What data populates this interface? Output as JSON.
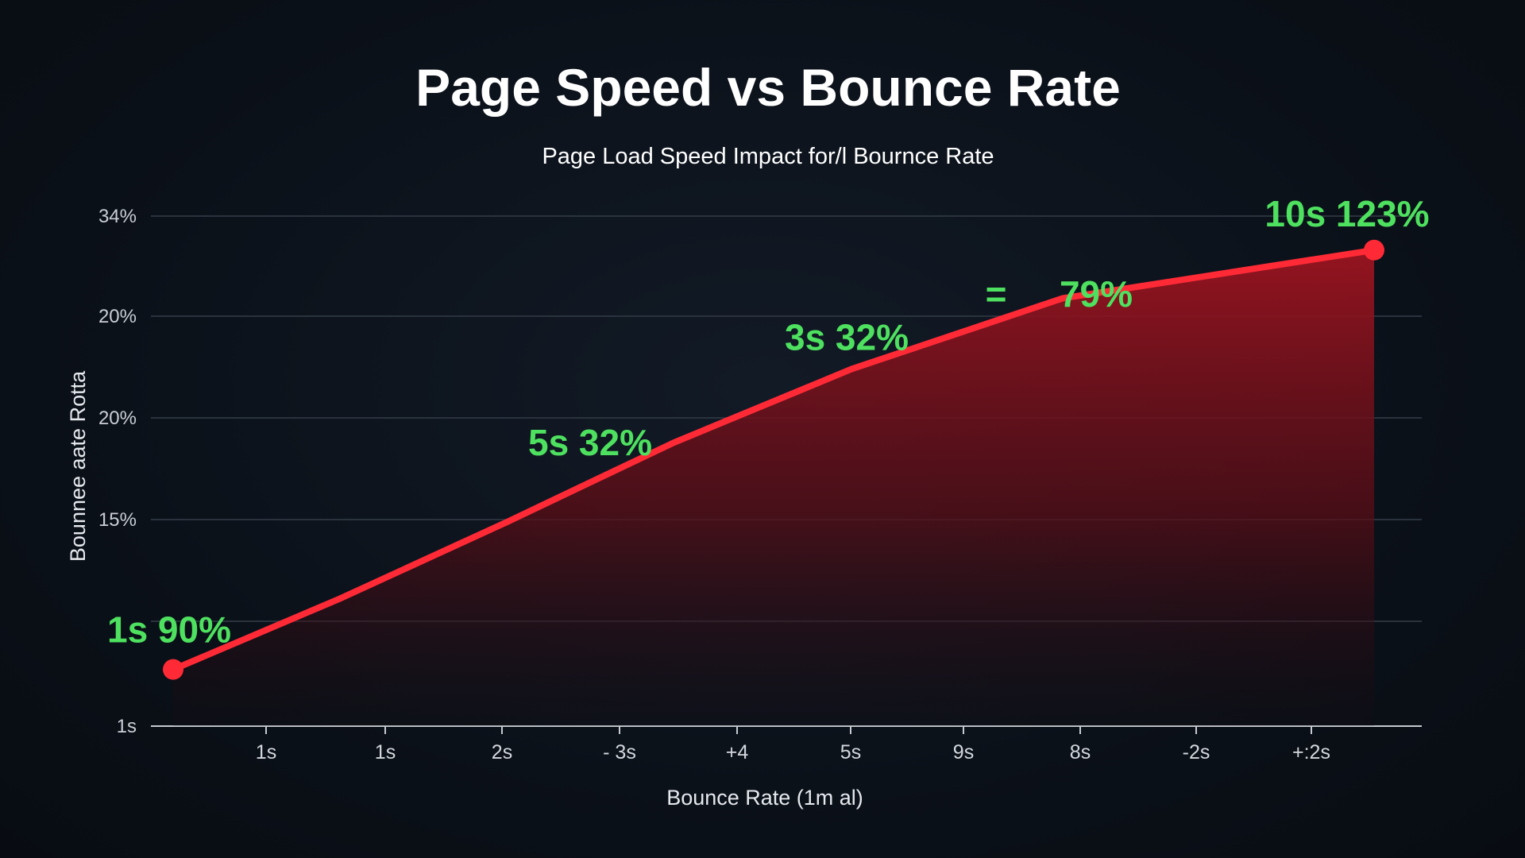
{
  "chart_data": {
    "type": "area",
    "title": "Page Speed vs Bounce Rate",
    "subtitle": "Page Load Speed Impact for/l Bournce Rate",
    "xlabel": "Bounce Rate (1m al)",
    "ylabel": "Bounnee aate Rotta",
    "y_tick_labels": [
      "34%",
      "20%",
      "20%",
      "15%",
      "",
      "1s"
    ],
    "x_tick_labels": [
      "1s",
      "1s",
      "2s",
      "- 3s",
      "+4",
      "5s",
      "9s",
      "8s",
      "-2s",
      "+:2s"
    ],
    "series": [
      {
        "color": "#ff2a36",
        "fill_color": "#8b111d",
        "points": [
          {
            "x": 0.0,
            "y": 0.0
          },
          {
            "x": 1.5,
            "y": 1.25
          },
          {
            "x": 3.0,
            "y": 2.6
          },
          {
            "x": 4.5,
            "y": 4.0
          },
          {
            "x": 6.1,
            "y": 5.3
          },
          {
            "x": 8.0,
            "y": 6.55
          },
          {
            "x": 10.8,
            "y": 7.4
          }
        ],
        "markers": [
          0,
          6
        ]
      }
    ],
    "annotations": [
      {
        "text": "1s 90%",
        "x": 0.0,
        "y": 0.0
      },
      {
        "text": "5s 32%",
        "x": 3.75,
        "y": 3.5
      },
      {
        "text": "3s 32%",
        "x": 6.1,
        "y": 5.3
      },
      {
        "text": "=",
        "x": 7.4,
        "y": 6.6
      },
      {
        "text": "79%",
        "x": 8.3,
        "y": 6.6
      },
      {
        "text": "10s 123%",
        "x": 10.8,
        "y": 7.4
      }
    ],
    "xlim": [
      0,
      11
    ],
    "ylim": [
      -1,
      8
    ],
    "grid": true,
    "legend": "none",
    "colors": {
      "background": "#0d1117",
      "line": "#ff2a36",
      "fill": "#8b111d",
      "labels": "#4ee05f",
      "grid": "#2a323d"
    }
  }
}
